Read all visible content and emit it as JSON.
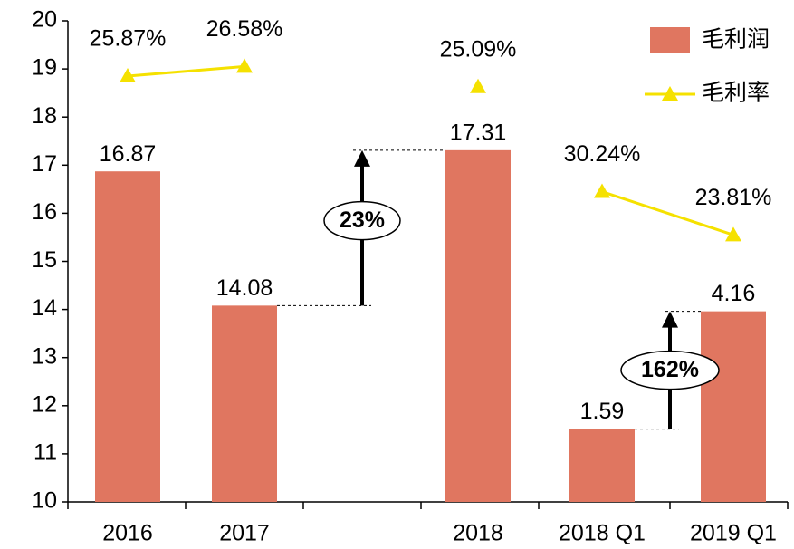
{
  "chart_data": {
    "type": "bar",
    "categories": [
      "2016",
      "2017",
      null,
      "2018",
      "2018 Q1",
      "2019 Q1"
    ],
    "series": [
      {
        "name": "毛利润",
        "type": "bar",
        "color": "#e07660",
        "values": [
          16.87,
          14.08,
          null,
          17.31,
          1.59,
          4.16
        ],
        "axis": [
          "y",
          "y",
          null,
          "y",
          "y2",
          "y2"
        ]
      },
      {
        "name": "毛利率",
        "type": "line",
        "color": "#f5e100",
        "values": [
          25.87,
          26.58,
          null,
          25.09,
          30.24,
          23.81
        ],
        "value_labels": [
          "25.87%",
          "26.58%",
          null,
          "25.09%",
          "30.24%",
          "23.81%"
        ],
        "axis": [
          "y3",
          "y3",
          null,
          "y3",
          "y4",
          "y4"
        ]
      }
    ],
    "ylim": [
      10,
      20
    ],
    "yticks": [
      10,
      11,
      12,
      13,
      14,
      15,
      16,
      17,
      18,
      19,
      20
    ],
    "y2lim": [
      0,
      10.5
    ],
    "y3lim": [
      -5.55,
      29.95
    ],
    "y4lim": [
      -15.83,
      55.6
    ],
    "annotations": [
      "23%",
      "162%"
    ],
    "legend": "upper right"
  }
}
